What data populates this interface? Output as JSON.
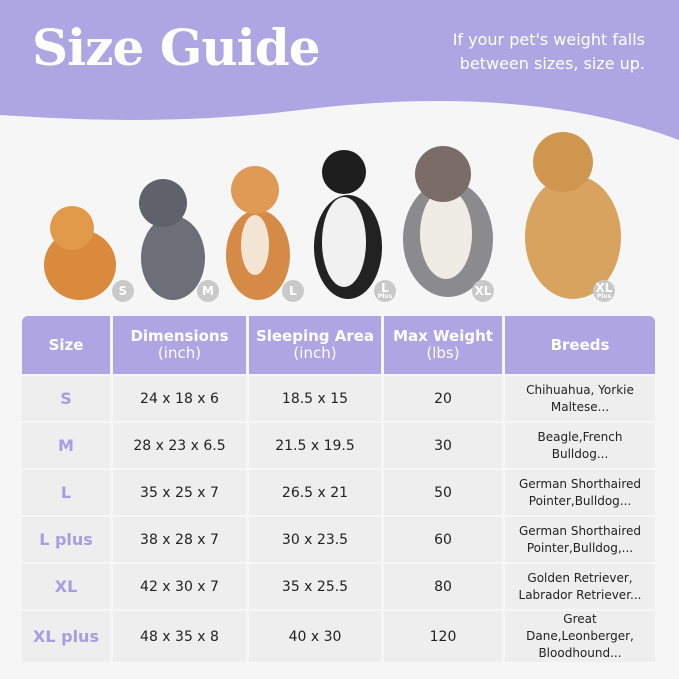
{
  "header": {
    "title": "Size Guide",
    "note_line1": "If your pet's weight falls",
    "note_line2": "between sizes, size up.",
    "color": "#aea6e2"
  },
  "dogs": [
    {
      "badge": "S",
      "sub": ""
    },
    {
      "badge": "M",
      "sub": ""
    },
    {
      "badge": "L",
      "sub": ""
    },
    {
      "badge": "L",
      "sub": "Plus"
    },
    {
      "badge": "XL",
      "sub": ""
    },
    {
      "badge": "XL",
      "sub": "Plus"
    }
  ],
  "table": {
    "headers": [
      {
        "main": "Size",
        "sub": ""
      },
      {
        "main": "Dimensions",
        "sub": "(inch)"
      },
      {
        "main": "Sleeping Area",
        "sub": "(inch)"
      },
      {
        "main": "Max Weight",
        "sub": "(lbs)"
      },
      {
        "main": "Breeds",
        "sub": ""
      }
    ],
    "rows": [
      {
        "size": "S",
        "dimensions": "24 x 18 x 6",
        "sleeping": "18.5 x 15",
        "weight": "20",
        "breeds1": "Chihuahua, Yorkie",
        "breeds2": "Maltese..."
      },
      {
        "size": "M",
        "dimensions": "28 x 23 x 6.5",
        "sleeping": "21.5 x 19.5",
        "weight": "30",
        "breeds1": "Beagle,French",
        "breeds2": "Bulldog..."
      },
      {
        "size": "L",
        "dimensions": "35 x 25 x 7",
        "sleeping": "26.5 x 21",
        "weight": "50",
        "breeds1": "German Shorthaired",
        "breeds2": "Pointer,Bulldog..."
      },
      {
        "size": "L plus",
        "dimensions": "38 x 28 x 7",
        "sleeping": "30 x 23.5",
        "weight": "60",
        "breeds1": "German Shorthaired",
        "breeds2": "Pointer,Bulldog,..."
      },
      {
        "size": "XL",
        "dimensions": "42 x 30 x 7",
        "sleeping": "35 x 25.5",
        "weight": "80",
        "breeds1": "Golden Retriever,",
        "breeds2": "Labrador Retriever..."
      },
      {
        "size": "XL plus",
        "dimensions": "48 x 35 x 8",
        "sleeping": "40 x 30",
        "weight": "120",
        "breeds1": "Great Dane,Leonberger,",
        "breeds2": "Bloodhound..."
      }
    ]
  }
}
